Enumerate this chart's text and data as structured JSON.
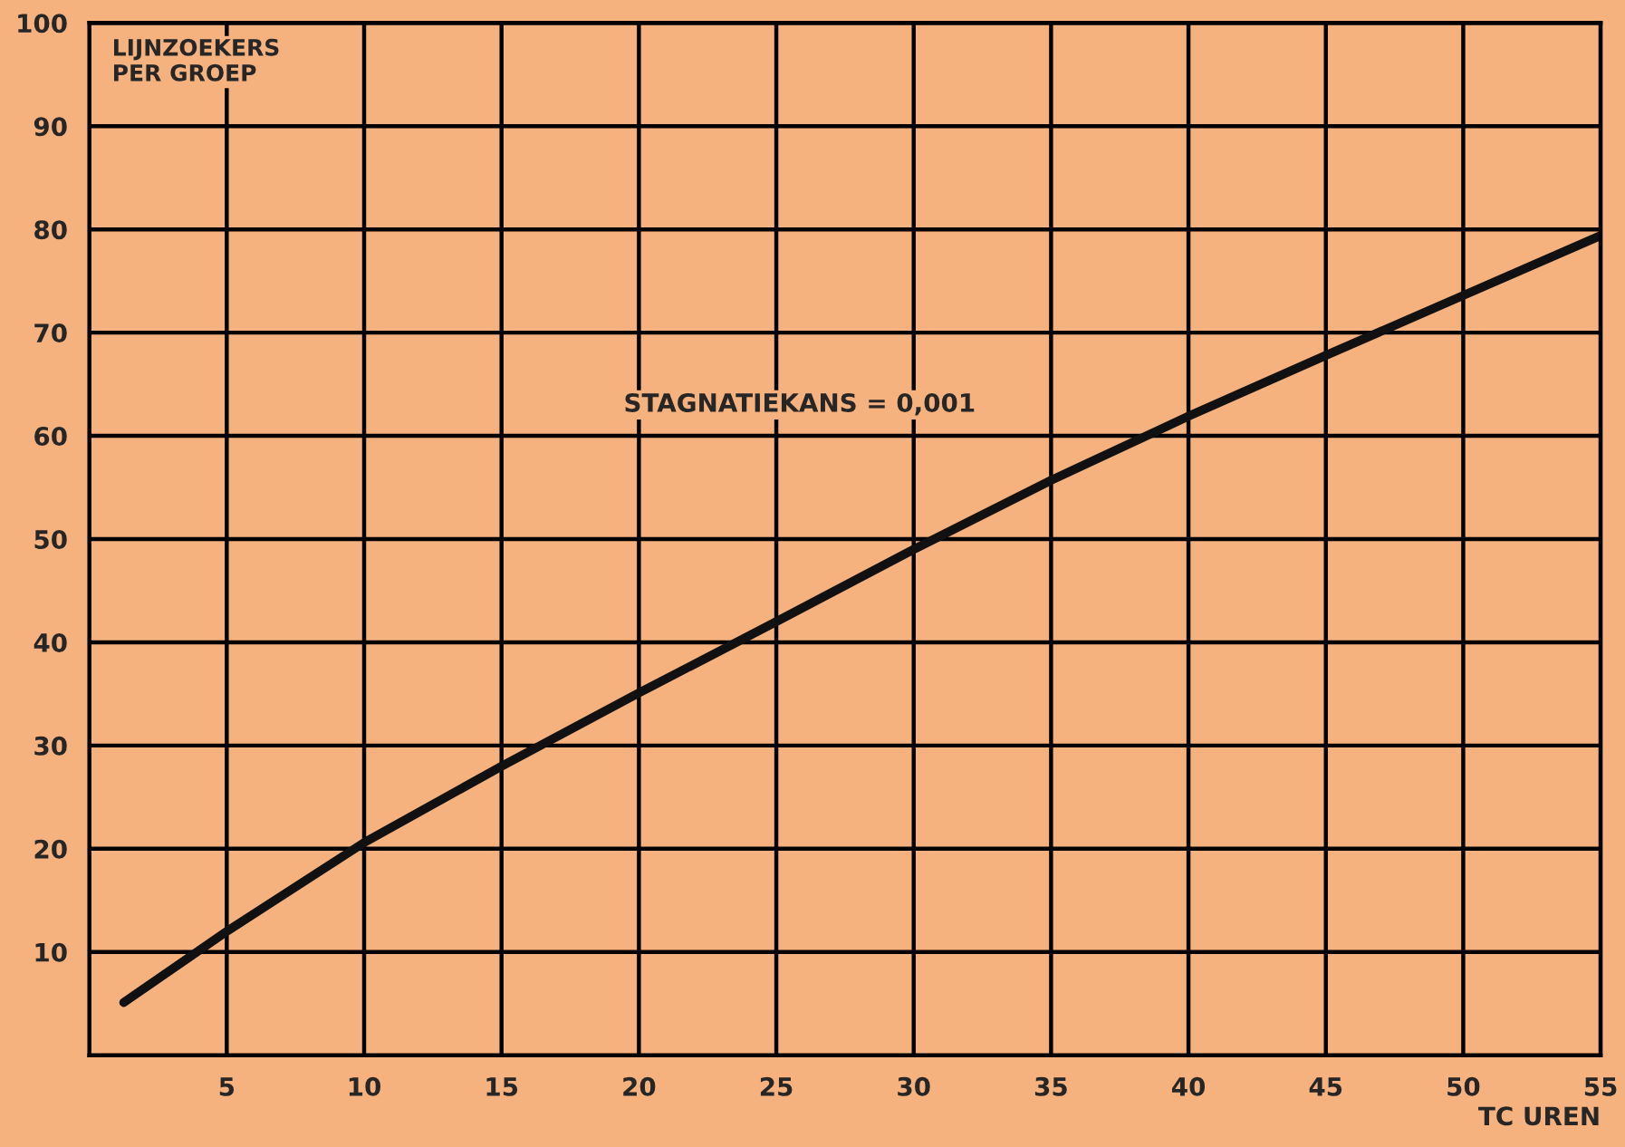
{
  "chart_data": {
    "type": "line",
    "xlabel": "TC UREN",
    "ylabel": "LIJNZOEKERS\nPER GROEP",
    "annotations": [
      "STAGNATIEKANS = 0,001"
    ],
    "x": [
      1.25,
      5,
      10,
      15,
      20,
      25,
      30,
      35,
      40,
      45,
      50,
      55
    ],
    "series": [
      {
        "color": "#111111",
        "values": [
          5.1,
          12,
          20.6,
          28,
          35.1,
          42,
          49,
          55.7,
          61.9,
          67.8,
          73.6,
          79.4
        ]
      }
    ],
    "xlim": [
      0,
      55
    ],
    "ylim": [
      0,
      100
    ],
    "xticks": [
      5,
      10,
      15,
      20,
      25,
      30,
      35,
      40,
      45,
      50,
      55
    ],
    "yticks": [
      10,
      20,
      30,
      40,
      50,
      60,
      70,
      80,
      90,
      100
    ],
    "grid": true,
    "legend": false,
    "marker": "none",
    "line_style": "solid"
  }
}
